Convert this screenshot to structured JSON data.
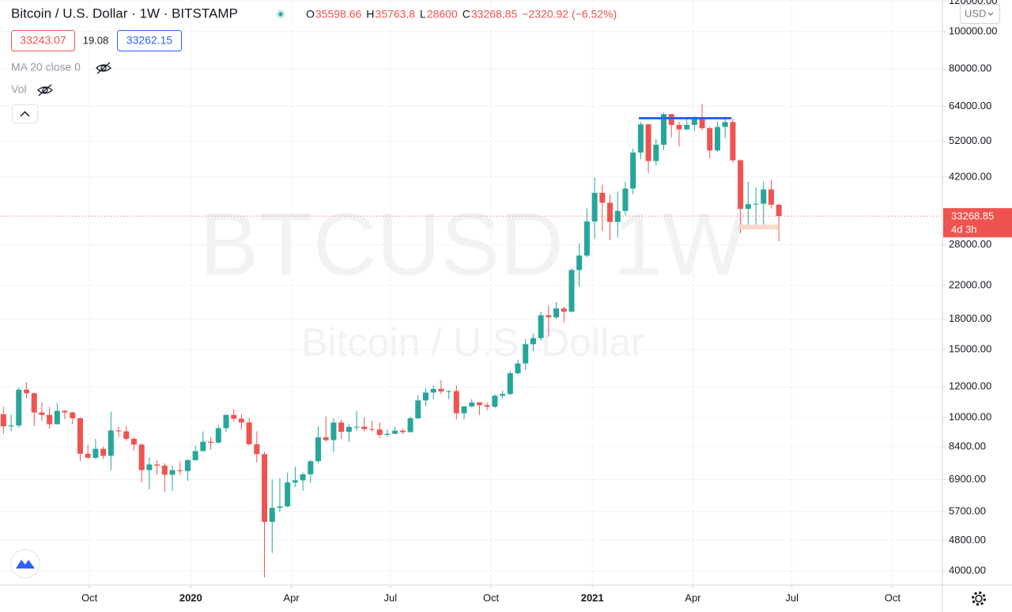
{
  "chart_data": {
    "type": "candlestick",
    "title": "Bitcoin / U.S. Dollar · 1W · BITSTAMP",
    "ohlc_letters": [
      "O",
      "H",
      "L",
      "C"
    ],
    "change": "−2320.92 (−6.52%)",
    "quote": {
      "bid": "33243.07",
      "spread": "19.08",
      "ask": "33262.15"
    },
    "indicators": [
      "MA 20 close 0",
      "Vol"
    ],
    "watermark": {
      "symbol": "BTCUSD, 1W",
      "description": "Bitcoin / U.S. Dollar"
    },
    "currency": "USD",
    "countdown": "4d 3h",
    "up_color": "#26a69a",
    "down_color": "#ef5350",
    "log_scale": true,
    "grid": true,
    "open": [
      10190,
      9480,
      9530,
      11800,
      11550,
      10300,
      10150,
      9600,
      10400,
      10300,
      9950,
      8050,
      7860,
      8290,
      7950,
      9250,
      9200,
      8800,
      8500,
      7300,
      7550,
      7500,
      7100,
      7300,
      7260,
      7750,
      8180,
      8650,
      8600,
      9380,
      10150,
      9920,
      9700,
      8520,
      8030,
      5360,
      5830,
      5880,
      6780,
      6870,
      7120,
      7700,
      8880,
      8730,
      9700,
      9180,
      9450,
      9460,
      9330,
      9300,
      9010,
      9070,
      9240,
      9160,
      9950,
      11070,
      11600,
      11850,
      11680,
      11700,
      10250,
      10680,
      10930,
      10760,
      10660,
      11380,
      11500,
      13020,
      13800,
      15480,
      16050,
      18400,
      18180,
      19160,
      18800,
      24100,
      26270,
      32200,
      38200,
      36000,
      32100,
      34300,
      39200,
      48600,
      57500,
      46200,
      50900,
      61100,
      57300,
      55800,
      57300,
      59800,
      56200,
      49200,
      56600,
      58300,
      46400,
      34700,
      35700,
      35800,
      39000,
      35598.66
    ],
    "high": [
      10650,
      10180,
      11950,
      12320,
      11600,
      10950,
      10650,
      10900,
      10450,
      10350,
      10000,
      8500,
      8800,
      8400,
      10350,
      9450,
      9500,
      8900,
      8550,
      7880,
      7750,
      7600,
      7500,
      7700,
      7800,
      8450,
      9200,
      8900,
      9550,
      10180,
      10500,
      10200,
      9970,
      9200,
      8150,
      6900,
      6950,
      7200,
      7460,
      7200,
      7770,
      9480,
      10060,
      9950,
      9850,
      9600,
      10400,
      9990,
      9800,
      9720,
      9300,
      9460,
      9370,
      10050,
      11430,
      11900,
      12100,
      12480,
      11780,
      12090,
      10700,
      11150,
      10960,
      10940,
      11490,
      11720,
      13220,
      14100,
      15970,
      16480,
      18800,
      19490,
      19900,
      19400,
      24300,
      28300,
      34800,
      41900,
      40100,
      37800,
      38500,
      40900,
      49700,
      58350,
      57600,
      52650,
      61700,
      61300,
      58400,
      59800,
      60450,
      64870,
      56800,
      58400,
      59500,
      59600,
      46600,
      40800,
      39500,
      40900,
      41400,
      35763.8
    ],
    "low": [
      9070,
      9200,
      9410,
      11200,
      9500,
      9800,
      9350,
      9600,
      9900,
      9600,
      7700,
      7800,
      7800,
      7800,
      7300,
      8900,
      8700,
      8200,
      6800,
      6500,
      7100,
      6400,
      6450,
      7100,
      6850,
      7700,
      8150,
      8250,
      8550,
      9150,
      9750,
      9300,
      8450,
      7650,
      3850,
      4450,
      5700,
      5850,
      6600,
      6450,
      6780,
      7600,
      8660,
      8120,
      8800,
      8640,
      9250,
      9200,
      9200,
      8830,
      8900,
      9050,
      9050,
      9130,
      9900,
      10700,
      11150,
      11500,
      11150,
      9880,
      9880,
      10600,
      10150,
      10430,
      10550,
      11200,
      11400,
      12900,
      13270,
      14850,
      15800,
      16200,
      18000,
      17600,
      18700,
      21800,
      26000,
      29000,
      30400,
      28800,
      29300,
      33400,
      37900,
      46700,
      43000,
      45000,
      49300,
      53200,
      50400,
      55500,
      55300,
      55400,
      47000,
      48800,
      53000,
      45700,
      30000,
      31100,
      31000,
      31000,
      34800,
      28600.0
    ],
    "close": [
      9480,
      9530,
      11800,
      11550,
      10300,
      10150,
      9600,
      10400,
      10300,
      9950,
      8050,
      7860,
      8290,
      7950,
      9250,
      9200,
      8800,
      8500,
      7300,
      7550,
      7500,
      7100,
      7300,
      7260,
      7750,
      8180,
      8650,
      8600,
      9380,
      10150,
      9920,
      9700,
      8520,
      8030,
      5360,
      5830,
      5880,
      6780,
      6870,
      7120,
      7700,
      8880,
      8730,
      9700,
      9180,
      9450,
      9460,
      9330,
      9300,
      9010,
      9070,
      9240,
      9160,
      9950,
      11070,
      11600,
      11850,
      11680,
      11700,
      10250,
      10680,
      10930,
      10760,
      10660,
      11380,
      11500,
      13020,
      13800,
      15480,
      16050,
      18400,
      18180,
      19160,
      18800,
      24100,
      26270,
      32200,
      38200,
      36000,
      32100,
      34300,
      39200,
      48600,
      57500,
      46200,
      50900,
      61100,
      57300,
      55800,
      57300,
      59800,
      56200,
      49200,
      56600,
      58300,
      46400,
      34700,
      35700,
      35800,
      39000,
      35590,
      33268.85
    ],
    "xlim": [
      -0.45,
      122.3
    ],
    "xticks": [
      {
        "value": 11.2,
        "label": "Oct"
      },
      {
        "value": 24.4,
        "label": "2020"
      },
      {
        "value": 37.5,
        "label": "Apr"
      },
      {
        "value": 50.4,
        "label": "Jul"
      },
      {
        "value": 63.5,
        "label": "Oct"
      },
      {
        "value": 76.7,
        "label": "2021"
      },
      {
        "value": 89.8,
        "label": "Apr"
      },
      {
        "value": 102.7,
        "label": "Jul"
      },
      {
        "value": 115.8,
        "label": "Oct"
      }
    ],
    "ylim": [
      3675,
      120780
    ],
    "yticks": [
      {
        "value": 4000,
        "label": "4000.00"
      },
      {
        "value": 4800,
        "label": "4800.00"
      },
      {
        "value": 5700,
        "label": "5700.00"
      },
      {
        "value": 6900,
        "label": "6900.00"
      },
      {
        "value": 8400,
        "label": "8400.00"
      },
      {
        "value": 10000,
        "label": "10000.00"
      },
      {
        "value": 12000,
        "label": "12000.00"
      },
      {
        "value": 15000,
        "label": "15000.00"
      },
      {
        "value": 18000,
        "label": "18000.00"
      },
      {
        "value": 22000,
        "label": "22000.00"
      },
      {
        "value": 28000,
        "label": "28000.00"
      },
      {
        "value": 42000,
        "label": "42000.00"
      },
      {
        "value": 52000,
        "label": "52000.00"
      },
      {
        "value": 64000,
        "label": "64000.00"
      },
      {
        "value": 80000,
        "label": "80000.00"
      },
      {
        "value": 100000,
        "label": "100000.00"
      },
      {
        "value": 120000,
        "label": "120000.00"
      }
    ]
  }
}
